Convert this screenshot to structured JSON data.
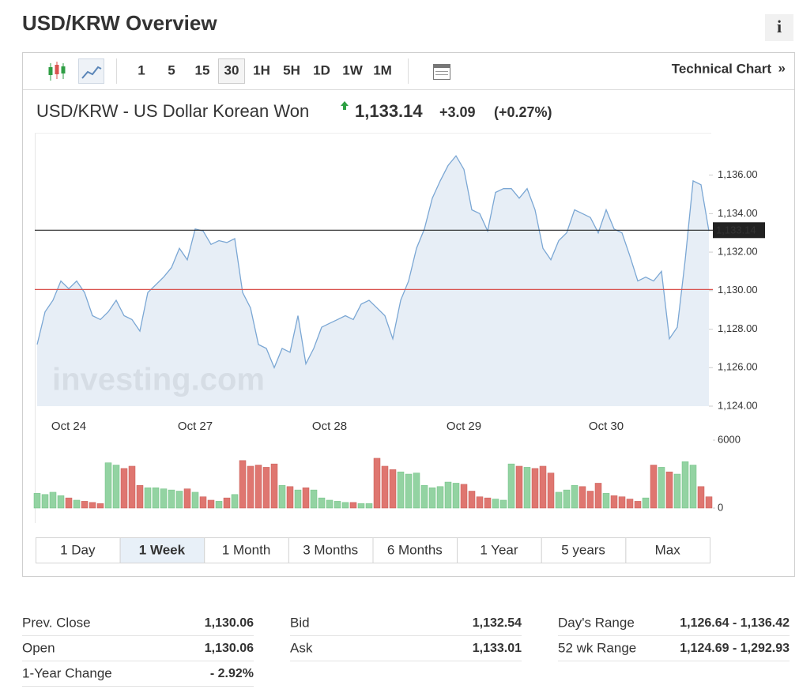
{
  "header": {
    "title": "USD/KRW Overview",
    "info": "i"
  },
  "toolbar": {
    "intervals": [
      "1",
      "5",
      "15",
      "30",
      "1H",
      "5H",
      "1D",
      "1W",
      "1M"
    ],
    "selected_interval": 3,
    "technical_chart": "Technical Chart",
    "technical_chart_arrow": "»"
  },
  "quote": {
    "name": "USD/KRW - US Dollar Korean Won",
    "last": "1,133.14",
    "change": "+3.09",
    "change_percent": "(+0.27%)"
  },
  "chart_data": [
    {
      "type": "line",
      "watermark": "investing.com",
      "categories": [
        null,
        null,
        null,
        null,
        "Oct 24",
        null,
        null,
        null,
        null,
        null,
        null,
        null,
        null,
        null,
        null,
        null,
        null,
        null,
        null,
        null,
        "Oct 27",
        null,
        null,
        null,
        null,
        null,
        null,
        null,
        null,
        null,
        null,
        null,
        null,
        null,
        null,
        null,
        null,
        "Oct 28",
        null,
        null,
        null,
        null,
        null,
        null,
        null,
        null,
        null,
        null,
        null,
        null,
        null,
        null,
        null,
        null,
        "Oct 29",
        null,
        null,
        null,
        null,
        null,
        null,
        null,
        null,
        null,
        null,
        null,
        null,
        null,
        null,
        null,
        null,
        null,
        "Oct 30",
        null,
        null,
        null,
        null,
        null,
        null,
        null,
        null,
        null,
        null,
        null,
        null,
        null
      ],
      "series": [
        {
          "name": "USD/KRW",
          "color": "#7ba7d4",
          "fill": "#e3ebf5",
          "values": [
            1127.2,
            1128.9,
            1129.5,
            1130.5,
            1130.1,
            1130.5,
            1129.9,
            1128.7,
            1128.5,
            1128.9,
            1129.5,
            1128.7,
            1128.5,
            1127.9,
            1129.9,
            1130.3,
            1130.7,
            1131.2,
            1132.2,
            1131.6,
            1133.2,
            1133.1,
            1132.4,
            1132.6,
            1132.5,
            1132.7,
            1129.9,
            1129.1,
            1127.2,
            1127.0,
            1126.0,
            1127.0,
            1126.8,
            1128.7,
            1126.2,
            1127.0,
            1128.1,
            1128.3,
            1128.5,
            1128.7,
            1128.5,
            1129.3,
            1129.5,
            1129.1,
            1128.7,
            1127.5,
            1129.5,
            1130.5,
            1132.2,
            1133.2,
            1134.8,
            1135.7,
            1136.5,
            1137.0,
            1136.3,
            1134.2,
            1134.0,
            1133.1,
            1135.1,
            1135.3,
            1135.3,
            1134.8,
            1135.3,
            1134.2,
            1132.2,
            1131.6,
            1132.6,
            1133.0,
            1134.2,
            1134.0,
            1133.8,
            1133.0,
            1134.2,
            1133.2,
            1133.0,
            1131.8,
            1130.5,
            1130.7,
            1130.5,
            1131.0,
            1127.5,
            1128.1,
            1131.6,
            1135.7,
            1135.5,
            1133.1
          ]
        }
      ],
      "ylim": [
        1124,
        1138.2
      ],
      "yticks": [
        {
          "value": 1124,
          "label": "1,124.00"
        },
        {
          "value": 1126,
          "label": "1,126.00"
        },
        {
          "value": 1128,
          "label": "1,128.00"
        },
        {
          "value": 1130,
          "label": "1,130.00"
        },
        {
          "value": 1132,
          "label": "1,132.00"
        },
        {
          "value": 1134,
          "label": "1,134.00"
        },
        {
          "value": 1136,
          "label": "1,136.00"
        }
      ],
      "reference_lines": [
        {
          "value": 1133.14,
          "label": "1,133.14",
          "color": "#222222"
        },
        {
          "value": 1130.06,
          "color": "#d9534f"
        }
      ]
    },
    {
      "type": "bar",
      "colors": {
        "up": "#93d3a2",
        "down": "#df7670"
      },
      "values": [
        1300,
        1200,
        1400,
        1100,
        900,
        700,
        600,
        500,
        400,
        4000,
        3800,
        3500,
        3700,
        2000,
        1800,
        1800,
        1700,
        1600,
        1500,
        1700,
        1400,
        1000,
        700,
        600,
        900,
        1200,
        4200,
        3700,
        3800,
        3600,
        3900,
        2000,
        1900,
        1600,
        1800,
        1600,
        900,
        700,
        600,
        500,
        500,
        400,
        400,
        4400,
        3700,
        3400,
        3200,
        3000,
        3100,
        2000,
        1800,
        1900,
        2300,
        2200,
        2100,
        1500,
        1000,
        900,
        800,
        700,
        3900,
        3700,
        3600,
        3500,
        3700,
        3100,
        1400,
        1600,
        2000,
        1900,
        1500,
        2200,
        1300,
        1100,
        1000,
        800,
        600,
        900,
        3800,
        3600,
        3200,
        3000,
        4100,
        3800,
        1900,
        1000
      ],
      "ylim": [
        0,
        6000
      ],
      "yticks": [
        0,
        6000
      ]
    }
  ],
  "periods": {
    "options": [
      "1 Day",
      "1 Week",
      "1 Month",
      "3 Months",
      "6 Months",
      "1 Year",
      "5 years",
      "Max"
    ],
    "selected": 1
  },
  "stats": [
    [
      {
        "label": "Prev. Close",
        "value": "1,130.06"
      },
      {
        "label": "Open",
        "value": "1,130.06"
      },
      {
        "label": "1-Year Change",
        "value": "- 2.92%"
      }
    ],
    [
      {
        "label": "Bid",
        "value": "1,132.54"
      },
      {
        "label": "Ask",
        "value": "1,133.01"
      }
    ],
    [
      {
        "label": "Day's Range",
        "value": "1,126.64 - 1,136.42"
      },
      {
        "label": "52 wk Range",
        "value": "1,124.69 - 1,292.93"
      }
    ]
  ]
}
